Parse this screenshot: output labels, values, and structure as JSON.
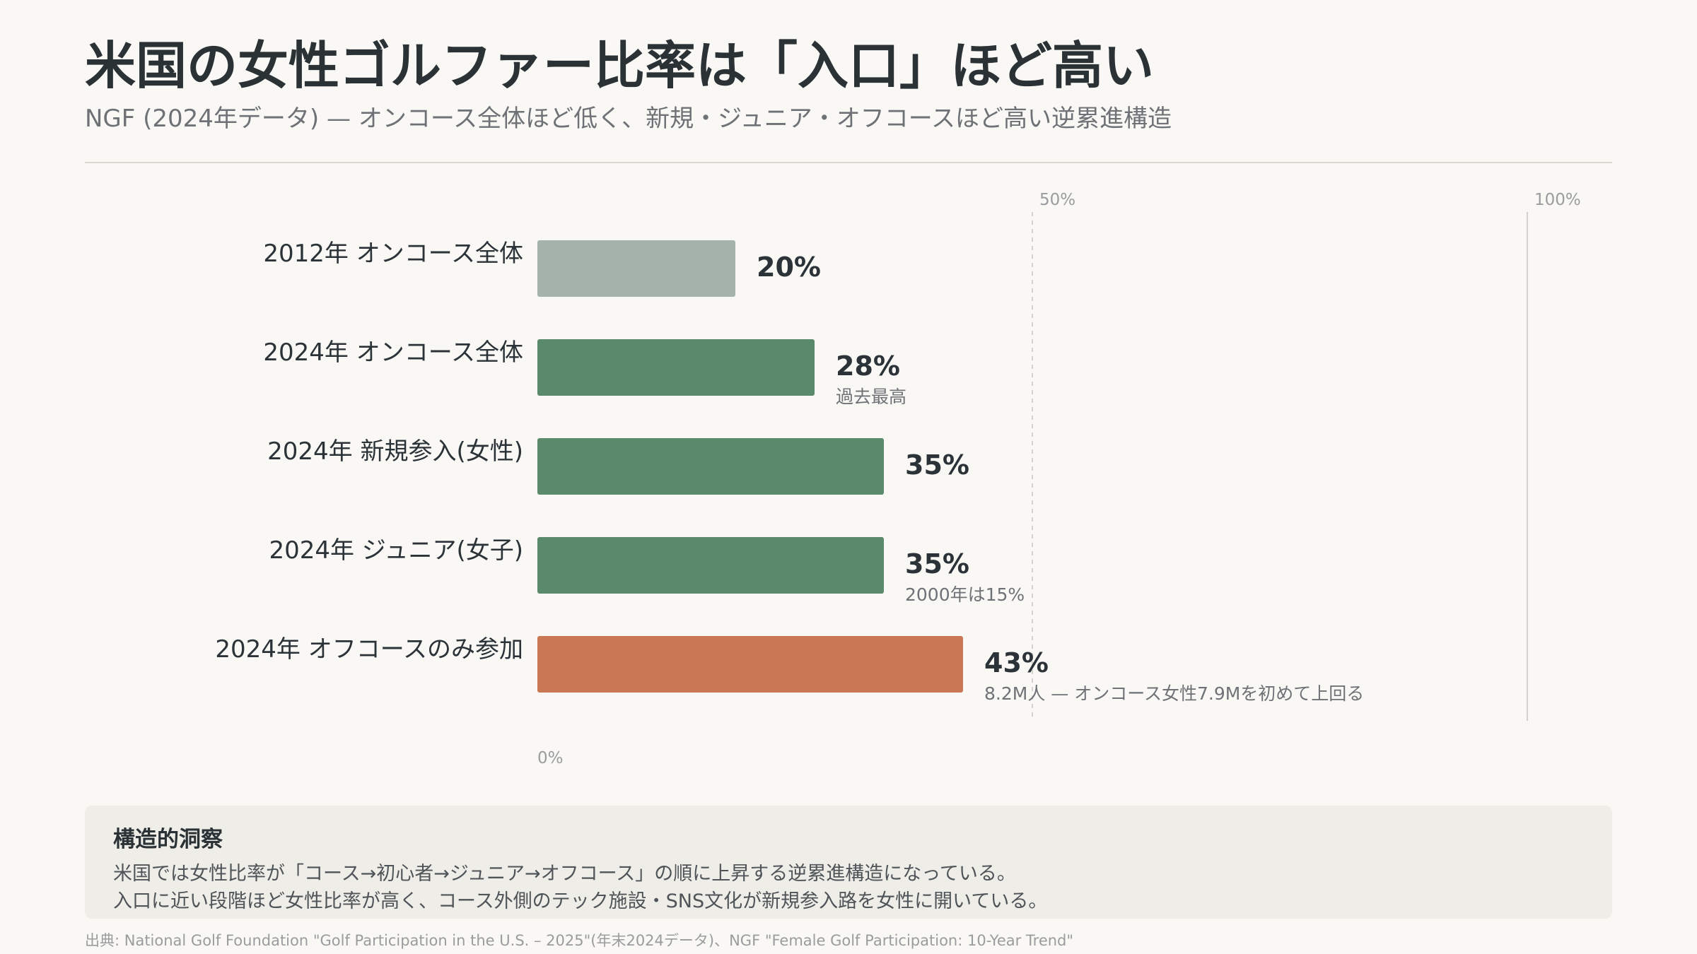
{
  "header": {
    "title": "米国の女性ゴルファー比率は「入口」ほど高い",
    "subtitle": "NGF (2024年データ) — オンコース全体ほど低く、新規・ジュニア・オフコースほど高い逆累進構造"
  },
  "chart_data": {
    "type": "bar",
    "orientation": "horizontal",
    "categories": [
      "2012年 オンコース全体",
      "2024年 オンコース全体",
      "2024年 新規参入(女性)",
      "2024年 ジュニア(女子)",
      "2024年 オフコースのみ参加"
    ],
    "values": [
      20,
      28,
      35,
      35,
      43
    ],
    "value_labels": [
      "20%",
      "28%",
      "35%",
      "35%",
      "43%"
    ],
    "annotations": [
      "",
      "過去最高",
      "",
      "2000年は15%",
      "8.2M人 — オンコース女性7.9Mを初めて上回る"
    ],
    "bar_colors": [
      "#a6b3aa",
      "#5b8a6b",
      "#5b8a6b",
      "#5b8a6b",
      "#c87853"
    ],
    "xlim": [
      0,
      100
    ],
    "ticks": [
      {
        "value": 0,
        "label": "0%"
      },
      {
        "value": 50,
        "label": "50%"
      },
      {
        "value": 100,
        "label": "100%"
      }
    ],
    "gridlines": [
      {
        "value": 50,
        "style": "dashed"
      },
      {
        "value": 100,
        "style": "solid"
      }
    ]
  },
  "insight": {
    "heading": "構造的洞察",
    "lines": [
      "米国では女性比率が「コース→初心者→ジュニア→オフコース」の順に上昇する逆累進構造になっている。",
      "入口に近い段階ほど女性比率が高く、コース外側のテック施設・SNS文化が新規参入路を女性に開いている。"
    ]
  },
  "footer": {
    "source": "出典: National Golf Foundation \"Golf Participation in the U.S. – 2025\"(年末2024データ)、NGF \"Female Golf Participation: 10-Year Trend\""
  }
}
